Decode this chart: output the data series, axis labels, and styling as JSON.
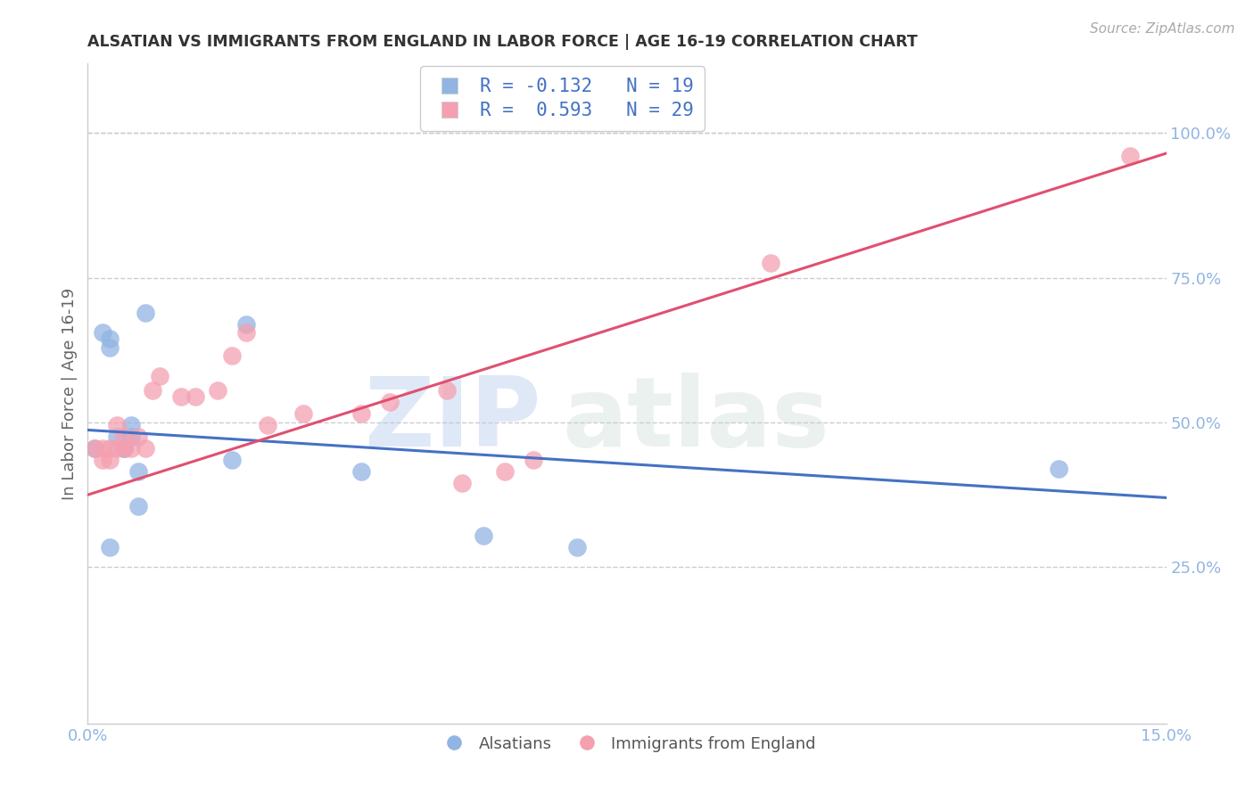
{
  "title": "ALSATIAN VS IMMIGRANTS FROM ENGLAND IN LABOR FORCE | AGE 16-19 CORRELATION CHART",
  "source": "Source: ZipAtlas.com",
  "ylabel": "In Labor Force | Age 16-19",
  "xlim": [
    0.0,
    0.15
  ],
  "ylim": [
    -0.02,
    1.12
  ],
  "xticks": [
    0.0,
    0.15
  ],
  "xtick_labels": [
    "0.0%",
    "15.0%"
  ],
  "yticks_right": [
    0.25,
    0.5,
    0.75,
    1.0
  ],
  "ytick_labels_right": [
    "25.0%",
    "50.0%",
    "75.0%",
    "100.0%"
  ],
  "grid_color": "#cccccc",
  "background_color": "#ffffff",
  "blue_color": "#92b4e3",
  "pink_color": "#f4a0b0",
  "blue_line_color": "#4472c4",
  "pink_line_color": "#e05070",
  "axis_color": "#92b4e3",
  "legend_label_blue": "R = -0.132   N = 19",
  "legend_label_pink": "R =  0.593   N = 29",
  "legend_bottom_blue": "Alsatians",
  "legend_bottom_pink": "Immigrants from England",
  "watermark_zip": "ZIP",
  "watermark_atlas": "atlas",
  "alsatian_x": [
    0.001,
    0.002,
    0.003,
    0.003,
    0.003,
    0.004,
    0.005,
    0.005,
    0.006,
    0.006,
    0.007,
    0.007,
    0.008,
    0.02,
    0.022,
    0.038,
    0.055,
    0.068,
    0.135
  ],
  "alsatian_y": [
    0.455,
    0.655,
    0.63,
    0.645,
    0.285,
    0.475,
    0.455,
    0.455,
    0.475,
    0.495,
    0.355,
    0.415,
    0.69,
    0.435,
    0.67,
    0.415,
    0.305,
    0.285,
    0.42
  ],
  "england_x": [
    0.001,
    0.002,
    0.002,
    0.003,
    0.003,
    0.004,
    0.004,
    0.005,
    0.005,
    0.006,
    0.007,
    0.008,
    0.009,
    0.01,
    0.013,
    0.015,
    0.018,
    0.02,
    0.022,
    0.025,
    0.03,
    0.038,
    0.042,
    0.05,
    0.052,
    0.058,
    0.062,
    0.095,
    0.145
  ],
  "england_y": [
    0.455,
    0.435,
    0.455,
    0.435,
    0.455,
    0.455,
    0.495,
    0.455,
    0.475,
    0.455,
    0.475,
    0.455,
    0.555,
    0.58,
    0.545,
    0.545,
    0.555,
    0.615,
    0.655,
    0.495,
    0.515,
    0.515,
    0.535,
    0.555,
    0.395,
    0.415,
    0.435,
    0.775,
    0.96
  ],
  "blue_line_x": [
    0.0,
    0.15
  ],
  "blue_line_y": [
    0.487,
    0.37
  ],
  "pink_line_x": [
    0.0,
    0.15
  ],
  "pink_line_y": [
    0.375,
    0.965
  ]
}
